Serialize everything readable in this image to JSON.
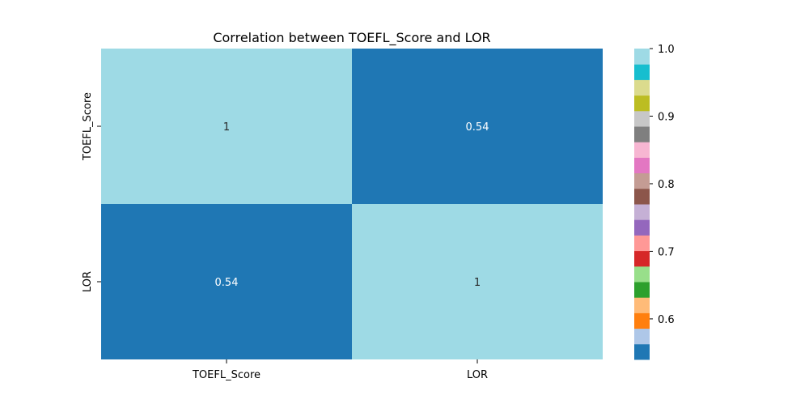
{
  "chart_data": {
    "type": "heatmap",
    "title": "Correlation between TOEFL_Score and LOR",
    "x_labels": [
      "TOEFL_Score",
      "LOR"
    ],
    "y_labels": [
      "TOEFL_Score",
      "LOR"
    ],
    "values": [
      [
        1.0,
        0.54
      ],
      [
        0.54,
        1.0
      ]
    ],
    "annotations": [
      [
        "1",
        "0.54"
      ],
      [
        "0.54",
        "1"
      ]
    ],
    "colormap": "tab20",
    "colorbar": {
      "range": [
        0.54,
        1.0
      ],
      "ticks": [
        0.6,
        0.7,
        0.8,
        0.9,
        1.0
      ],
      "tick_labels": [
        "0.6",
        "0.7",
        "0.8",
        "0.9",
        "1.0"
      ],
      "colors": [
        "#1f77b4",
        "#aec7e8",
        "#ff7f0e",
        "#ffbb78",
        "#2ca02c",
        "#98df8a",
        "#d62728",
        "#ff9896",
        "#9467bd",
        "#c5b0d5",
        "#8c564b",
        "#c49c94",
        "#e377c2",
        "#f7b6d2",
        "#7f7f7f",
        "#c7c7c7",
        "#bcbd22",
        "#dbdb8d",
        "#17becf",
        "#9edae5"
      ]
    }
  }
}
